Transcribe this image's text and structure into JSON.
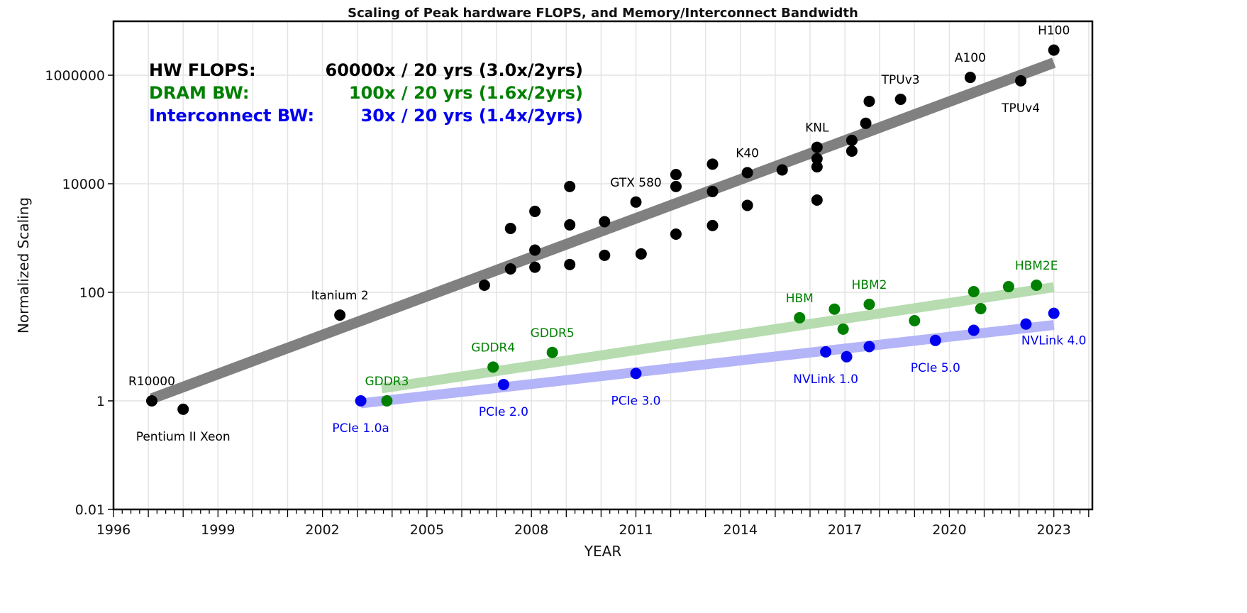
{
  "chart_data": {
    "type": "scatter",
    "title": "Scaling of Peak hardware FLOPS, and Memory/Interconnect Bandwidth",
    "xlabel": "YEAR",
    "ylabel": "Normalized Scaling",
    "xlim": [
      1996,
      2024
    ],
    "ylim": [
      0.01,
      10000000
    ],
    "yscale": "log",
    "grid": true,
    "xticks": [
      1996,
      1999,
      2002,
      2005,
      2008,
      2011,
      2014,
      2017,
      2020,
      2023
    ],
    "yticks": [
      0.01,
      1,
      100,
      10000,
      1000000
    ],
    "ytick_labels": [
      "0.01",
      "1",
      "100",
      "10000",
      "1000000"
    ],
    "legend_placement": "top-left",
    "legend": [
      {
        "label": "HW FLOPS:",
        "value": "60000x / 20 yrs (3.0x/2yrs)",
        "color": "#000000"
      },
      {
        "label": "DRAM BW:",
        "value": "100x / 20 yrs (1.6x/2yrs)",
        "color": "#008000"
      },
      {
        "label": "Interconnect BW:",
        "value": "30x / 20 yrs (1.4x/2yrs)",
        "color": "#0000ee"
      }
    ],
    "series": [
      {
        "key": "flops",
        "color": "#000000",
        "trend_color": "#808080",
        "trend": [
          [
            1997.1,
            1.1
          ],
          [
            2023.0,
            1700000
          ]
        ],
        "points": [
          {
            "x": 1997.1,
            "y": 1,
            "label": "R10000",
            "pos": "above"
          },
          {
            "x": 1998.0,
            "y": 0.7,
            "label": "Pentium II Xeon",
            "pos": "below"
          },
          {
            "x": 2002.5,
            "y": 38,
            "label": "Itanium 2",
            "pos": "above"
          },
          {
            "x": 2006.65,
            "y": 135
          },
          {
            "x": 2007.4,
            "y": 270
          },
          {
            "x": 2007.4,
            "y": 1500
          },
          {
            "x": 2008.1,
            "y": 290
          },
          {
            "x": 2008.1,
            "y": 600
          },
          {
            "x": 2008.1,
            "y": 3100
          },
          {
            "x": 2009.1,
            "y": 325
          },
          {
            "x": 2009.1,
            "y": 1750
          },
          {
            "x": 2009.1,
            "y": 8900
          },
          {
            "x": 2010.1,
            "y": 480
          },
          {
            "x": 2010.1,
            "y": 2000
          },
          {
            "x": 2011.0,
            "y": 4600,
            "label": "GTX 580",
            "pos": "above"
          },
          {
            "x": 2011.15,
            "y": 510
          },
          {
            "x": 2012.15,
            "y": 1180
          },
          {
            "x": 2012.15,
            "y": 8900
          },
          {
            "x": 2012.15,
            "y": 14800
          },
          {
            "x": 2013.2,
            "y": 1700
          },
          {
            "x": 2013.2,
            "y": 7200
          },
          {
            "x": 2013.2,
            "y": 23000
          },
          {
            "x": 2014.2,
            "y": 4000
          },
          {
            "x": 2014.2,
            "y": 16000,
            "label": "K40",
            "pos": "above"
          },
          {
            "x": 2015.2,
            "y": 18000
          },
          {
            "x": 2016.2,
            "y": 5000
          },
          {
            "x": 2016.2,
            "y": 20500
          },
          {
            "x": 2016.2,
            "y": 29000
          },
          {
            "x": 2016.2,
            "y": 47000,
            "label": "KNL",
            "pos": "above"
          },
          {
            "x": 2017.2,
            "y": 40000
          },
          {
            "x": 2017.2,
            "y": 63000
          },
          {
            "x": 2017.6,
            "y": 130000
          },
          {
            "x": 2017.7,
            "y": 330000
          },
          {
            "x": 2018.6,
            "y": 360000,
            "label": "TPUv3",
            "pos": "above"
          },
          {
            "x": 2020.6,
            "y": 910000,
            "label": "A100",
            "pos": "above"
          },
          {
            "x": 2022.05,
            "y": 790000,
            "label": "TPUv4",
            "pos": "below"
          },
          {
            "x": 2023.0,
            "y": 2900000,
            "label": "H100",
            "pos": "above"
          }
        ]
      },
      {
        "key": "dram",
        "color": "#008000",
        "trend_color": "#b6dcb0",
        "trend": [
          [
            2003.7,
            1.7
          ],
          [
            2023.0,
            124
          ]
        ],
        "points": [
          {
            "x": 2003.85,
            "y": 1,
            "label": "GDDR3",
            "pos": "above"
          },
          {
            "x": 2006.9,
            "y": 4.2,
            "label": "GDDR4",
            "pos": "above"
          },
          {
            "x": 2008.6,
            "y": 7.8,
            "label": "GDDR5",
            "pos": "above"
          },
          {
            "x": 2015.7,
            "y": 34,
            "label": "HBM",
            "pos": "above"
          },
          {
            "x": 2016.7,
            "y": 49
          },
          {
            "x": 2016.95,
            "y": 21
          },
          {
            "x": 2017.7,
            "y": 60,
            "label": "HBM2",
            "pos": "above"
          },
          {
            "x": 2019.0,
            "y": 30
          },
          {
            "x": 2020.7,
            "y": 103
          },
          {
            "x": 2020.9,
            "y": 50
          },
          {
            "x": 2021.7,
            "y": 127
          },
          {
            "x": 2022.5,
            "y": 135,
            "label": "HBM2E",
            "pos": "above"
          }
        ]
      },
      {
        "key": "interconnect",
        "color": "#0000ee",
        "trend_color": "#b4b4f8",
        "trend": [
          [
            2003.1,
            0.9
          ],
          [
            2023.0,
            25
          ]
        ],
        "points": [
          {
            "x": 2003.1,
            "y": 1,
            "label": "PCIe 1.0a",
            "pos": "below"
          },
          {
            "x": 2007.2,
            "y": 2.0,
            "label": "PCIe 2.0",
            "pos": "below"
          },
          {
            "x": 2011.0,
            "y": 3.2,
            "label": "PCIe 3.0",
            "pos": "below"
          },
          {
            "x": 2016.45,
            "y": 8,
            "label": "NVLink 1.0",
            "pos": "below"
          },
          {
            "x": 2017.05,
            "y": 6.5
          },
          {
            "x": 2017.7,
            "y": 10
          },
          {
            "x": 2019.6,
            "y": 13,
            "label": "PCIe 5.0",
            "pos": "below"
          },
          {
            "x": 2020.7,
            "y": 20
          },
          {
            "x": 2022.2,
            "y": 26
          },
          {
            "x": 2023.0,
            "y": 41,
            "label": "NVLink 4.0",
            "pos": "below"
          }
        ]
      }
    ]
  }
}
